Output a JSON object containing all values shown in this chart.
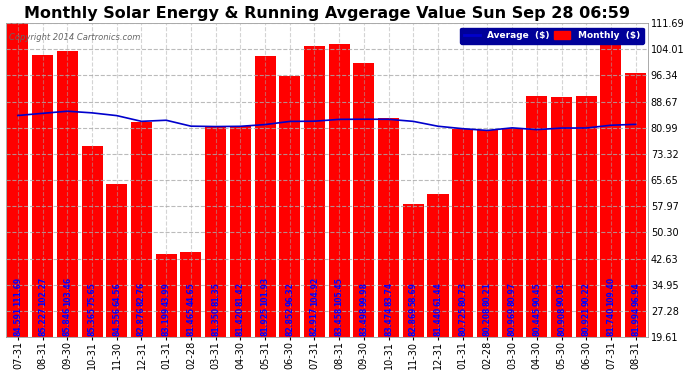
{
  "title": "Monthly Solar Energy & Running Avgerage Value Sun Sep 28 06:59",
  "copyright": "Copyright 2014 Cartronics.com",
  "categories": [
    "07-31",
    "08-31",
    "09-30",
    "10-31",
    "11-30",
    "12-31",
    "01-31",
    "02-28",
    "03-31",
    "04-30",
    "05-31",
    "06-30",
    "07-31",
    "08-31",
    "09-30",
    "10-31",
    "11-30",
    "12-31",
    "01-31",
    "02-28",
    "03-30",
    "04-30",
    "05-30",
    "06-30",
    "07-31",
    "08-31"
  ],
  "bar_values": [
    111.69,
    102.27,
    103.46,
    75.65,
    64.56,
    82.76,
    43.99,
    44.65,
    81.35,
    81.42,
    101.925,
    96.32,
    104.917,
    105.453,
    99.98,
    83.74,
    58.69,
    61.44,
    80.725,
    80.208,
    80.969,
    90.445,
    90.008,
    90.221,
    109.4,
    96.94
  ],
  "avg_values": [
    84.591,
    85.227,
    85.846,
    85.365,
    84.556,
    82.876,
    83.199,
    81.465,
    81.35,
    81.42,
    81.925,
    82.852,
    82.917,
    83.458,
    83.498,
    83.474,
    82.869,
    81.44,
    80.725,
    80.208,
    80.969,
    80.445,
    80.908,
    80.921,
    81.74,
    81.994
  ],
  "bar_top_labels": [
    "84.591",
    "85.227",
    "85.846",
    "85.365",
    "84.556",
    "82.876",
    "83.199",
    "81.465",
    "81.350",
    "81.420",
    "81.925",
    "82.852",
    "82.917",
    "83.458",
    "83.498",
    "83.474",
    "82.869",
    "81.440",
    "80.725",
    "80.208",
    "80.969",
    "80.445",
    "80.908",
    "80.921",
    "81.740",
    "81.994"
  ],
  "bar_bot_labels": [
    "111.69",
    "102.27",
    "103.46",
    "75.65",
    "64.56",
    "82.76",
    "43.99",
    "44.65",
    "81.35",
    "81.42",
    "101.93",
    "96.32",
    "104.92",
    "105.45",
    "99.98",
    "83.74",
    "58.69",
    "61.44",
    "80.73",
    "80.21",
    "80.97",
    "90.45",
    "90.01",
    "90.22",
    "109.40",
    "96.94"
  ],
  "bar_color": "#ff0000",
  "avg_line_color": "#0000cc",
  "background_color": "#ffffff",
  "grid_color": "#aaaaaa",
  "ytick_labels": [
    "19.61",
    "27.28",
    "34.95",
    "42.63",
    "50.30",
    "57.97",
    "65.65",
    "73.32",
    "80.99",
    "88.67",
    "96.34",
    "104.01",
    "111.69"
  ],
  "ytick_values": [
    19.61,
    27.28,
    34.95,
    42.63,
    50.3,
    57.97,
    65.65,
    73.32,
    80.99,
    88.67,
    96.34,
    104.01,
    111.69
  ],
  "ymin": 19.61,
  "ymax": 111.69,
  "legend_avg_label": "Average  ($)",
  "legend_monthly_label": "Monthly  ($)",
  "title_fontsize": 11.5,
  "label_fontsize": 5.5,
  "axis_fontsize": 7.0
}
